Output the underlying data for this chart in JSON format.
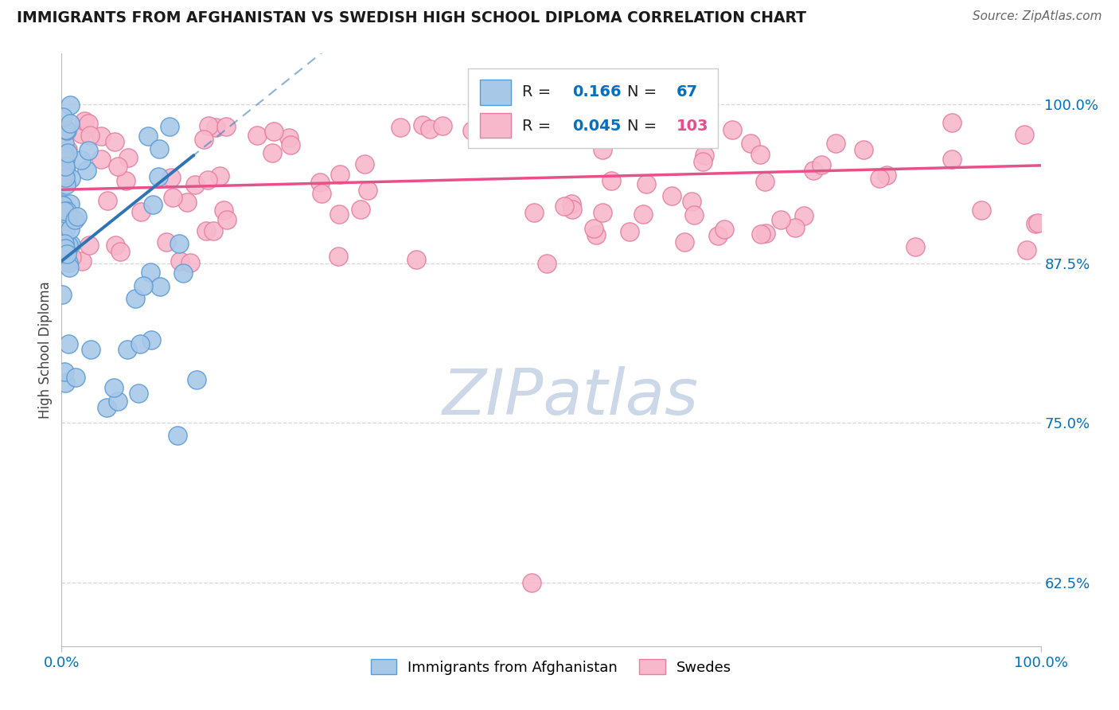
{
  "title": "IMMIGRANTS FROM AFGHANISTAN VS SWEDISH HIGH SCHOOL DIPLOMA CORRELATION CHART",
  "source": "Source: ZipAtlas.com",
  "ylabel": "High School Diploma",
  "legend_label_blue": "Immigrants from Afghanistan",
  "legend_label_pink": "Swedes",
  "r_blue": 0.166,
  "n_blue": 67,
  "r_pink": 0.045,
  "n_pink": 103,
  "title_color": "#1a1a1a",
  "source_color": "#666666",
  "blue_fill": "#a8c8e8",
  "blue_edge": "#5b9bd5",
  "pink_fill": "#f8b8cc",
  "pink_edge": "#e87da0",
  "blue_line_color": "#2e75b6",
  "pink_line_color": "#e8508a",
  "axis_tick_color": "#0070c0",
  "legend_r_blue_color": "#0070c0",
  "legend_r_pink_color": "#0070c0",
  "legend_n_blue_color": "#0070c0",
  "legend_n_pink_color": "#e84c8b",
  "background_color": "#ffffff",
  "grid_color": "#cccccc",
  "watermark_color": "#ccd8e8",
  "xlim_min": 0.0,
  "xlim_max": 1.0,
  "ylim_min": 0.575,
  "ylim_max": 1.04,
  "yticks": [
    0.625,
    0.75,
    0.875,
    1.0
  ],
  "ytick_labels": [
    "62.5%",
    "75.0%",
    "87.5%",
    "100.0%"
  ],
  "xticks": [
    0.0,
    1.0
  ],
  "xtick_labels": [
    "0.0%",
    "100.0%"
  ]
}
